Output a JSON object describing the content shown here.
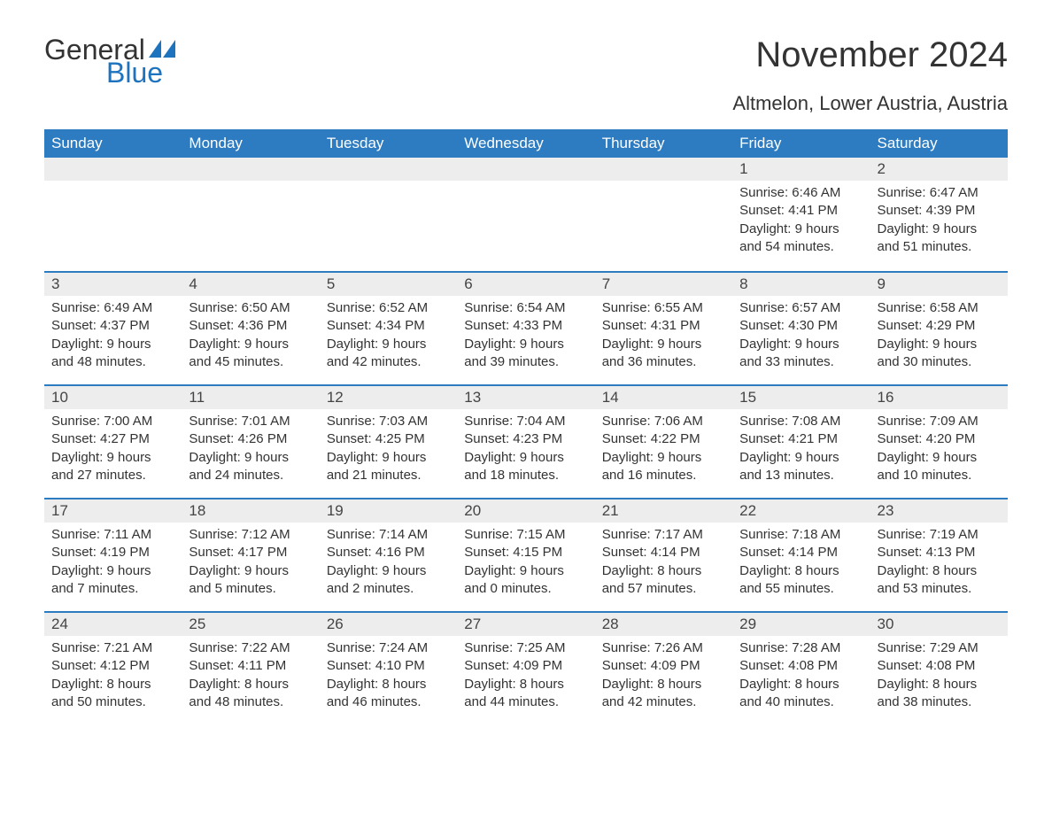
{
  "logo": {
    "text_general": "General",
    "text_blue": "Blue",
    "sail_color": "#1e73be",
    "general_color": "#333333",
    "blue_color": "#1e73be"
  },
  "title": "November 2024",
  "subtitle": "Altmelon, Lower Austria, Austria",
  "colors": {
    "header_bg": "#2d7bc0",
    "header_text": "#ffffff",
    "week_border": "#2d7bc0",
    "daynum_bg": "#ededed",
    "text": "#333333",
    "background": "#ffffff"
  },
  "days_of_week": [
    "Sunday",
    "Monday",
    "Tuesday",
    "Wednesday",
    "Thursday",
    "Friday",
    "Saturday"
  ],
  "weeks": [
    [
      {
        "n": "",
        "lines": []
      },
      {
        "n": "",
        "lines": []
      },
      {
        "n": "",
        "lines": []
      },
      {
        "n": "",
        "lines": []
      },
      {
        "n": "",
        "lines": []
      },
      {
        "n": "1",
        "lines": [
          "Sunrise: 6:46 AM",
          "Sunset: 4:41 PM",
          "Daylight: 9 hours",
          "and 54 minutes."
        ]
      },
      {
        "n": "2",
        "lines": [
          "Sunrise: 6:47 AM",
          "Sunset: 4:39 PM",
          "Daylight: 9 hours",
          "and 51 minutes."
        ]
      }
    ],
    [
      {
        "n": "3",
        "lines": [
          "Sunrise: 6:49 AM",
          "Sunset: 4:37 PM",
          "Daylight: 9 hours",
          "and 48 minutes."
        ]
      },
      {
        "n": "4",
        "lines": [
          "Sunrise: 6:50 AM",
          "Sunset: 4:36 PM",
          "Daylight: 9 hours",
          "and 45 minutes."
        ]
      },
      {
        "n": "5",
        "lines": [
          "Sunrise: 6:52 AM",
          "Sunset: 4:34 PM",
          "Daylight: 9 hours",
          "and 42 minutes."
        ]
      },
      {
        "n": "6",
        "lines": [
          "Sunrise: 6:54 AM",
          "Sunset: 4:33 PM",
          "Daylight: 9 hours",
          "and 39 minutes."
        ]
      },
      {
        "n": "7",
        "lines": [
          "Sunrise: 6:55 AM",
          "Sunset: 4:31 PM",
          "Daylight: 9 hours",
          "and 36 minutes."
        ]
      },
      {
        "n": "8",
        "lines": [
          "Sunrise: 6:57 AM",
          "Sunset: 4:30 PM",
          "Daylight: 9 hours",
          "and 33 minutes."
        ]
      },
      {
        "n": "9",
        "lines": [
          "Sunrise: 6:58 AM",
          "Sunset: 4:29 PM",
          "Daylight: 9 hours",
          "and 30 minutes."
        ]
      }
    ],
    [
      {
        "n": "10",
        "lines": [
          "Sunrise: 7:00 AM",
          "Sunset: 4:27 PM",
          "Daylight: 9 hours",
          "and 27 minutes."
        ]
      },
      {
        "n": "11",
        "lines": [
          "Sunrise: 7:01 AM",
          "Sunset: 4:26 PM",
          "Daylight: 9 hours",
          "and 24 minutes."
        ]
      },
      {
        "n": "12",
        "lines": [
          "Sunrise: 7:03 AM",
          "Sunset: 4:25 PM",
          "Daylight: 9 hours",
          "and 21 minutes."
        ]
      },
      {
        "n": "13",
        "lines": [
          "Sunrise: 7:04 AM",
          "Sunset: 4:23 PM",
          "Daylight: 9 hours",
          "and 18 minutes."
        ]
      },
      {
        "n": "14",
        "lines": [
          "Sunrise: 7:06 AM",
          "Sunset: 4:22 PM",
          "Daylight: 9 hours",
          "and 16 minutes."
        ]
      },
      {
        "n": "15",
        "lines": [
          "Sunrise: 7:08 AM",
          "Sunset: 4:21 PM",
          "Daylight: 9 hours",
          "and 13 minutes."
        ]
      },
      {
        "n": "16",
        "lines": [
          "Sunrise: 7:09 AM",
          "Sunset: 4:20 PM",
          "Daylight: 9 hours",
          "and 10 minutes."
        ]
      }
    ],
    [
      {
        "n": "17",
        "lines": [
          "Sunrise: 7:11 AM",
          "Sunset: 4:19 PM",
          "Daylight: 9 hours",
          "and 7 minutes."
        ]
      },
      {
        "n": "18",
        "lines": [
          "Sunrise: 7:12 AM",
          "Sunset: 4:17 PM",
          "Daylight: 9 hours",
          "and 5 minutes."
        ]
      },
      {
        "n": "19",
        "lines": [
          "Sunrise: 7:14 AM",
          "Sunset: 4:16 PM",
          "Daylight: 9 hours",
          "and 2 minutes."
        ]
      },
      {
        "n": "20",
        "lines": [
          "Sunrise: 7:15 AM",
          "Sunset: 4:15 PM",
          "Daylight: 9 hours",
          "and 0 minutes."
        ]
      },
      {
        "n": "21",
        "lines": [
          "Sunrise: 7:17 AM",
          "Sunset: 4:14 PM",
          "Daylight: 8 hours",
          "and 57 minutes."
        ]
      },
      {
        "n": "22",
        "lines": [
          "Sunrise: 7:18 AM",
          "Sunset: 4:14 PM",
          "Daylight: 8 hours",
          "and 55 minutes."
        ]
      },
      {
        "n": "23",
        "lines": [
          "Sunrise: 7:19 AM",
          "Sunset: 4:13 PM",
          "Daylight: 8 hours",
          "and 53 minutes."
        ]
      }
    ],
    [
      {
        "n": "24",
        "lines": [
          "Sunrise: 7:21 AM",
          "Sunset: 4:12 PM",
          "Daylight: 8 hours",
          "and 50 minutes."
        ]
      },
      {
        "n": "25",
        "lines": [
          "Sunrise: 7:22 AM",
          "Sunset: 4:11 PM",
          "Daylight: 8 hours",
          "and 48 minutes."
        ]
      },
      {
        "n": "26",
        "lines": [
          "Sunrise: 7:24 AM",
          "Sunset: 4:10 PM",
          "Daylight: 8 hours",
          "and 46 minutes."
        ]
      },
      {
        "n": "27",
        "lines": [
          "Sunrise: 7:25 AM",
          "Sunset: 4:09 PM",
          "Daylight: 8 hours",
          "and 44 minutes."
        ]
      },
      {
        "n": "28",
        "lines": [
          "Sunrise: 7:26 AM",
          "Sunset: 4:09 PM",
          "Daylight: 8 hours",
          "and 42 minutes."
        ]
      },
      {
        "n": "29",
        "lines": [
          "Sunrise: 7:28 AM",
          "Sunset: 4:08 PM",
          "Daylight: 8 hours",
          "and 40 minutes."
        ]
      },
      {
        "n": "30",
        "lines": [
          "Sunrise: 7:29 AM",
          "Sunset: 4:08 PM",
          "Daylight: 8 hours",
          "and 38 minutes."
        ]
      }
    ]
  ]
}
